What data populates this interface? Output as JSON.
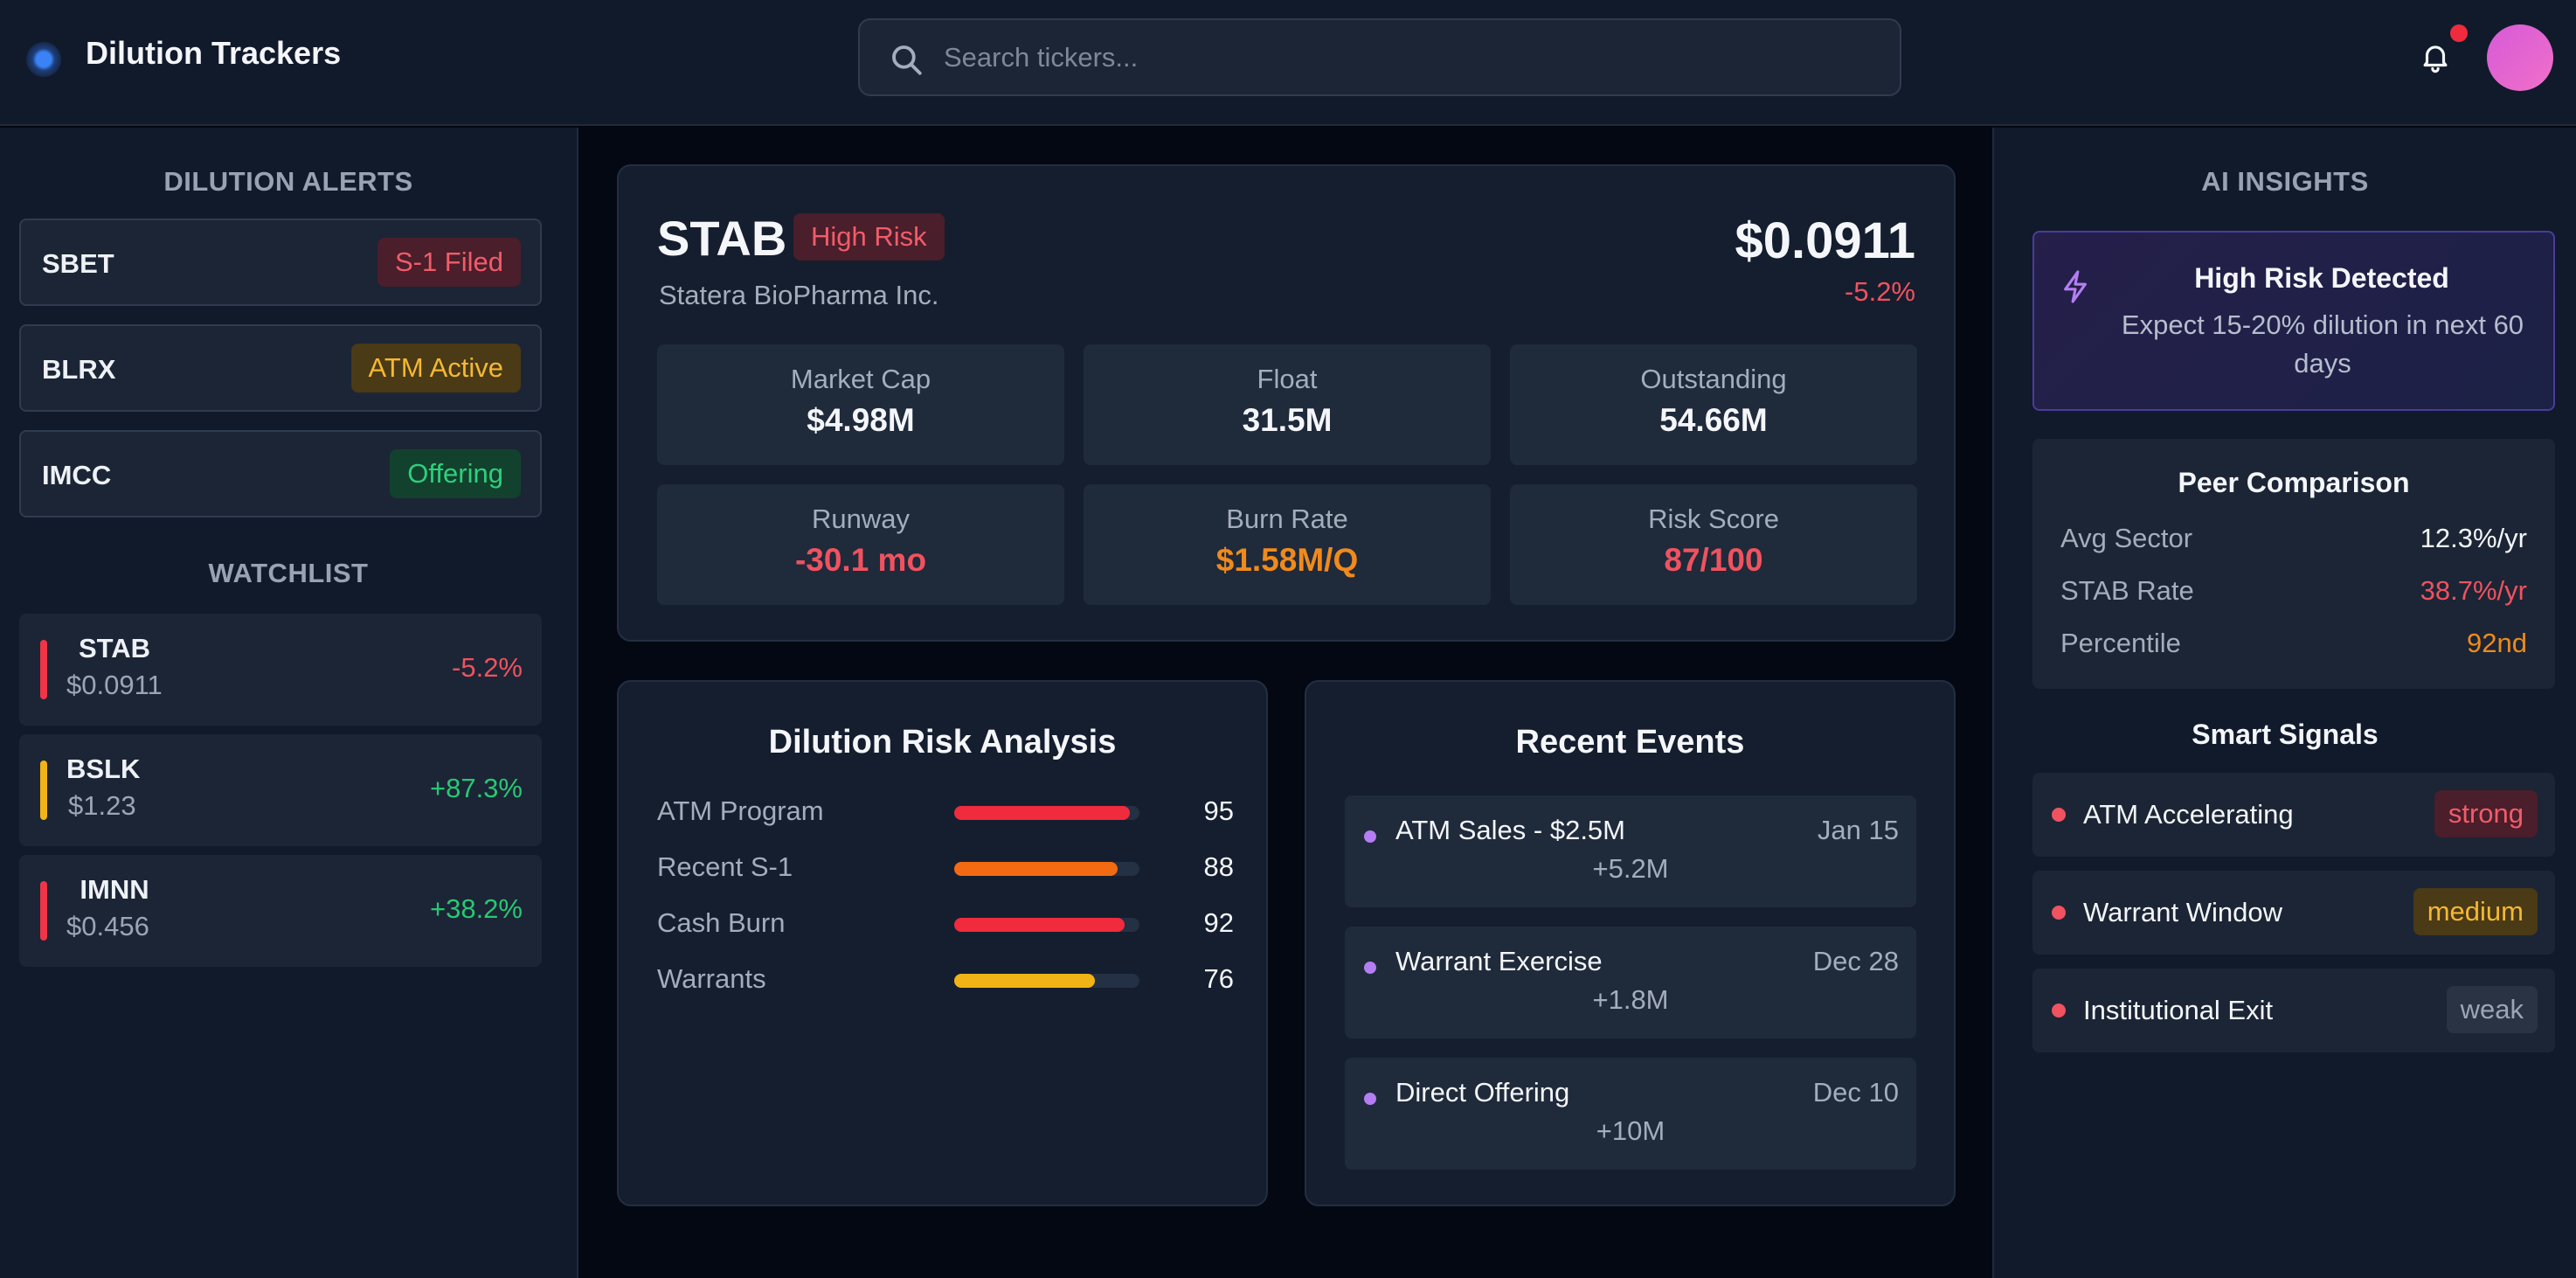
{
  "header": {
    "app_title": "Dilution Trackers",
    "search_placeholder": "Search tickers..."
  },
  "colors": {
    "background": "#040812",
    "panel": "#111a2b",
    "danger": "#f0525f",
    "warning": "#f5b833",
    "success": "#27c873",
    "orange": "#f08a1c",
    "accent_purple": "#b57df2"
  },
  "alerts": {
    "title": "DILUTION ALERTS",
    "items": [
      {
        "ticker": "SBET",
        "badge": "S-1 Filed"
      },
      {
        "ticker": "BLRX",
        "badge": "ATM Active"
      },
      {
        "ticker": "IMCC",
        "badge": "Offering"
      }
    ]
  },
  "watchlist": {
    "title": "WATCHLIST",
    "items": [
      {
        "ticker": "STAB",
        "price": "$0.0911",
        "change": "-5.2%"
      },
      {
        "ticker": "BSLK",
        "price": "$1.23",
        "change": "+87.3%"
      },
      {
        "ticker": "IMNN",
        "price": "$0.456",
        "change": "+38.2%"
      }
    ]
  },
  "stock": {
    "ticker": "STAB",
    "risk_badge": "High Risk",
    "company": "Statera BioPharma Inc.",
    "price": "$0.0911",
    "change": "-5.2%",
    "metrics": [
      {
        "label": "Market Cap",
        "value": "$4.98M"
      },
      {
        "label": "Float",
        "value": "31.5M"
      },
      {
        "label": "Outstanding",
        "value": "54.66M"
      },
      {
        "label": "Runway",
        "value": "-30.1 mo"
      },
      {
        "label": "Burn Rate",
        "value": "$1.58M/Q"
      },
      {
        "label": "Risk Score",
        "value": "87/100"
      }
    ]
  },
  "risk_analysis": {
    "title": "Dilution Risk Analysis",
    "rows": [
      {
        "label": "ATM Program",
        "score": 95,
        "value": "95"
      },
      {
        "label": "Recent S-1",
        "score": 88,
        "value": "88"
      },
      {
        "label": "Cash Burn",
        "score": 92,
        "value": "92"
      },
      {
        "label": "Warrants",
        "score": 76,
        "value": "76"
      }
    ]
  },
  "events": {
    "title": "Recent Events",
    "items": [
      {
        "title": "ATM Sales - $2.5M",
        "date": "Jan 15",
        "detail": "+5.2M"
      },
      {
        "title": "Warrant Exercise",
        "date": "Dec 28",
        "detail": "+1.8M"
      },
      {
        "title": "Direct Offering",
        "date": "Dec 10",
        "detail": "+10M"
      }
    ]
  },
  "insights": {
    "title": "AI INSIGHTS",
    "alert_title": "High Risk Detected",
    "alert_text": "Expect 15-20% dilution in next 60 days",
    "peer": {
      "title": "Peer Comparison",
      "rows": [
        {
          "label": "Avg Sector",
          "value": "12.3%/yr"
        },
        {
          "label": "STAB Rate",
          "value": "38.7%/yr"
        },
        {
          "label": "Percentile",
          "value": "92nd"
        }
      ]
    },
    "signals_title": "Smart Signals",
    "signals": [
      {
        "label": "ATM Accelerating",
        "strength": "strong"
      },
      {
        "label": "Warrant Window",
        "strength": "medium"
      },
      {
        "label": "Institutional Exit",
        "strength": "weak"
      }
    ]
  }
}
